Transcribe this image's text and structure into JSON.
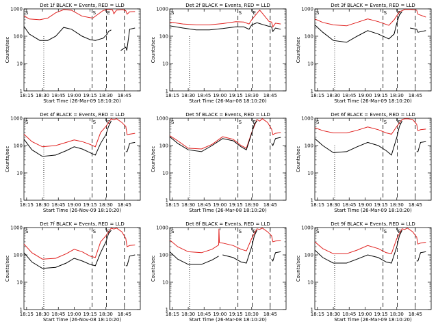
{
  "figure": {
    "ytick_labels": [
      "1000",
      "100",
      "10",
      "1"
    ],
    "xtick_labels": [
      "18:15",
      "18:30",
      "18:45",
      "19:00",
      "19:15",
      "18:30",
      "18:45"
    ],
    "marker_labels": {
      "start": "S",
      "end": "E",
      "loc_c": "C",
      "loc_n": "N"
    }
  },
  "chart_data": [
    {
      "type": "line",
      "title": "Det 1f BLACK = Events, RED = LLD",
      "xlabel": "Start Time (26-Mar-09 18:10:20)",
      "ylabel": "Counts/sec",
      "yscale": "log",
      "xlim": [
        0,
        44
      ],
      "ylim": [
        1,
        1000
      ],
      "series": [
        {
          "name": "LLD",
          "color": "#e0201e",
          "x": [
            0,
            2,
            6,
            9,
            12,
            15,
            18,
            22,
            26,
            30,
            32,
            33.5,
            34,
            35,
            37.5,
            38.5,
            39,
            40,
            42
          ],
          "values": [
            560,
            430,
            400,
            460,
            720,
            940,
            890,
            540,
            460,
            880,
            960,
            920,
            660,
            900,
            920,
            860,
            640,
            780,
            800
          ]
        },
        {
          "name": "Events",
          "color": "#000000",
          "x": [
            0,
            2,
            6,
            9,
            12,
            15,
            18,
            22,
            25,
            27,
            30,
            31.5,
            32,
            33,
            36,
            36.6,
            38.5,
            38.9,
            40,
            42
          ],
          "values": [
            230,
            120,
            70,
            70,
            100,
            210,
            180,
            100,
            75,
            70,
            85,
            120,
            150,
            170,
            null,
            30,
            40,
            30,
            180,
            200
          ]
        }
      ]
    },
    {
      "type": "line",
      "title": "Det 2f BLACK = Events, RED = LLD",
      "xlabel": "Start Time (26-Mar-08 18:10:20)",
      "ylabel": "Counts/sec",
      "yscale": "log",
      "xlim": [
        0,
        44
      ],
      "ylim": [
        1,
        1000
      ],
      "series": [
        {
          "name": "LLD",
          "color": "#e0201e",
          "x": [
            0,
            5,
            10,
            15,
            20,
            25,
            28,
            30,
            31,
            34,
            35,
            37.5,
            38.5,
            39,
            40,
            42
          ],
          "values": [
            330,
            280,
            260,
            260,
            290,
            340,
            330,
            280,
            400,
            900,
            700,
            350,
            330,
            220,
            300,
            280
          ]
        },
        {
          "name": "Events",
          "color": "#000000",
          "x": [
            0,
            5,
            10,
            15,
            20,
            25,
            28,
            30,
            31,
            33,
            35,
            37.5,
            38.5,
            39,
            40,
            42
          ],
          "values": [
            240,
            200,
            170,
            170,
            190,
            220,
            220,
            180,
            260,
            310,
            270,
            230,
            220,
            150,
            200,
            180
          ]
        }
      ]
    },
    {
      "type": "line",
      "title": "Det 3f BLACK = Events, RED = LLD",
      "xlabel": "Start Time (26-Mar-09 18:10:20)",
      "ylabel": "Counts/sec",
      "yscale": "log",
      "xlim": [
        0,
        44
      ],
      "ylim": [
        1,
        1000
      ],
      "series": [
        {
          "name": "LLD",
          "color": "#e0201e",
          "x": [
            0,
            3,
            7,
            12,
            16,
            20,
            24,
            28,
            30,
            32,
            34,
            36,
            38.5,
            39,
            42
          ],
          "values": [
            430,
            320,
            260,
            240,
            320,
            430,
            340,
            250,
            400,
            780,
            950,
            960,
            900,
            640,
            500
          ]
        },
        {
          "name": "Events",
          "color": "#000000",
          "x": [
            0,
            3,
            7,
            12,
            16,
            20,
            24,
            28,
            30,
            31,
            32,
            33,
            34,
            36,
            38.5,
            39,
            42
          ],
          "values": [
            260,
            140,
            70,
            60,
            100,
            160,
            120,
            80,
            120,
            300,
            600,
            800,
            null,
            200,
            180,
            140,
            160
          ]
        }
      ]
    },
    {
      "type": "line",
      "title": "Det 4f BLACK = Events, RED = LLD",
      "xlabel": "Start Time (26-Nov-09 18:10:20)",
      "ylabel": "Counts/sec",
      "yscale": "log",
      "xlim": [
        0,
        44
      ],
      "ylim": [
        1,
        1000
      ],
      "series": [
        {
          "name": "LLD",
          "color": "#e0201e",
          "x": [
            0,
            3,
            7,
            12,
            16,
            19,
            22,
            25,
            27,
            29,
            31,
            33,
            34,
            35,
            37,
            38.5,
            39,
            40,
            42
          ],
          "values": [
            260,
            140,
            90,
            100,
            130,
            160,
            140,
            110,
            90,
            300,
            500,
            950,
            880,
            960,
            700,
            500,
            250,
            260,
            280
          ]
        },
        {
          "name": "Events",
          "color": "#000000",
          "x": [
            0,
            3,
            7,
            12,
            16,
            19,
            22,
            25,
            27,
            29,
            31,
            32,
            33,
            35,
            37,
            38.5,
            39,
            40,
            42
          ],
          "values": [
            170,
            70,
            40,
            45,
            65,
            90,
            75,
            55,
            45,
            120,
            250,
            500,
            800,
            null,
            null,
            60,
            60,
            120,
            130
          ]
        }
      ]
    },
    {
      "type": "line",
      "title": "Det 5f BLACK = Events, RED = LLD",
      "xlabel": "Start Time (26-Mar-08 18:10:20)",
      "ylabel": "Counts/sec",
      "yscale": "log",
      "xlim": [
        0,
        44
      ],
      "ylim": [
        1,
        1000
      ],
      "series": [
        {
          "name": "LLD",
          "color": "#e0201e",
          "x": [
            0,
            3,
            7,
            12,
            16,
            20,
            24,
            27,
            29,
            31,
            33,
            34,
            35,
            37,
            38.5,
            39,
            40,
            42
          ],
          "values": [
            230,
            150,
            80,
            75,
            110,
            210,
            170,
            100,
            80,
            300,
            900,
            780,
            960,
            700,
            400,
            250,
            280,
            300
          ]
        },
        {
          "name": "Events",
          "color": "#000000",
          "x": [
            0,
            3,
            7,
            12,
            16,
            20,
            24,
            27,
            29,
            31,
            32,
            33,
            35,
            37,
            38.5,
            39,
            40,
            42
          ],
          "values": [
            210,
            120,
            70,
            60,
            100,
            180,
            150,
            90,
            70,
            280,
            600,
            800,
            null,
            null,
            120,
            100,
            180,
            200
          ]
        }
      ]
    },
    {
      "type": "line",
      "title": "Det 6f BLACK = Events, RED = LLD",
      "xlabel": "Start Time (26-Mar-09 18:10:20)",
      "ylabel": "Counts/sec",
      "yscale": "log",
      "xlim": [
        0,
        44
      ],
      "ylim": [
        1,
        1000
      ],
      "series": [
        {
          "name": "LLD",
          "color": "#e0201e",
          "x": [
            0,
            3,
            7,
            12,
            16,
            20,
            24,
            27,
            29,
            31,
            33,
            34,
            35,
            37,
            38.5,
            39,
            40,
            42
          ],
          "values": [
            450,
            350,
            290,
            290,
            360,
            480,
            380,
            290,
            260,
            500,
            900,
            950,
            960,
            900,
            600,
            350,
            380,
            400
          ]
        },
        {
          "name": "Events",
          "color": "#000000",
          "x": [
            0,
            3,
            7,
            12,
            16,
            20,
            24,
            27,
            29,
            31,
            32,
            33,
            35,
            37,
            38.5,
            39,
            40,
            42
          ],
          "values": [
            180,
            100,
            55,
            60,
            90,
            130,
            100,
            65,
            45,
            200,
            500,
            800,
            null,
            null,
            60,
            60,
            130,
            140
          ]
        }
      ]
    },
    {
      "type": "line",
      "title": "Det 7f BLACK = Events, RED = LLD",
      "xlabel": "Start Time (26-Nov-08 18:10:20)",
      "ylabel": "Counts/sec",
      "yscale": "log",
      "xlim": [
        0,
        44
      ],
      "ylim": [
        1,
        1000
      ],
      "series": [
        {
          "name": "LLD",
          "color": "#e0201e",
          "x": [
            0,
            3,
            7,
            12,
            16,
            19,
            22,
            25,
            27,
            29,
            31,
            33,
            34,
            35,
            37,
            38.5,
            39,
            40,
            42
          ],
          "values": [
            250,
            120,
            70,
            75,
            110,
            160,
            130,
            90,
            80,
            300,
            500,
            950,
            880,
            960,
            700,
            400,
            200,
            220,
            230
          ]
        },
        {
          "name": "Events",
          "color": "#000000",
          "x": [
            0,
            3,
            7,
            12,
            16,
            19,
            22,
            25,
            27,
            29,
            31,
            32,
            33,
            35,
            37,
            38.5,
            39,
            40,
            42
          ],
          "values": [
            120,
            55,
            32,
            35,
            50,
            75,
            60,
            45,
            40,
            120,
            300,
            600,
            800,
            null,
            null,
            40,
            40,
            90,
            100
          ]
        }
      ]
    },
    {
      "type": "line",
      "title": "Det 8f BLACK = Events, RED = LLD",
      "xlabel": "Start Time (26-Mar-08 18:10:20)",
      "ylabel": "Counts/sec",
      "yscale": "log",
      "xlim": [
        0,
        44
      ],
      "ylim": [
        1,
        1000
      ],
      "series": [
        {
          "name": "LLD",
          "color": "#e0201e",
          "x": [
            0,
            3,
            7,
            12,
            16,
            18.5,
            18.6,
            18.8,
            20,
            24,
            27,
            29,
            31,
            33,
            34,
            35,
            37,
            38.5,
            39,
            40,
            42
          ],
          "values": [
            350,
            200,
            130,
            120,
            160,
            230,
            900,
            280,
            270,
            220,
            160,
            140,
            400,
            900,
            850,
            960,
            700,
            500,
            300,
            320,
            340
          ]
        },
        {
          "name": "Events",
          "color": "#000000",
          "x": [
            0,
            3,
            7,
            12,
            16,
            18.5,
            19.5,
            20,
            24,
            27,
            29,
            31,
            32,
            33,
            35,
            37,
            38.5,
            39,
            40,
            42
          ],
          "values": [
            130,
            70,
            45,
            45,
            65,
            90,
            null,
            100,
            80,
            55,
            50,
            200,
            500,
            800,
            null,
            null,
            70,
            60,
            120,
            130
          ]
        }
      ]
    },
    {
      "type": "line",
      "title": "Det 9f BLACK = Events, RED = LLD",
      "xlabel": "Start Time (26-Mar-09 18:10:20)",
      "ylabel": "Counts/sec",
      "yscale": "log",
      "xlim": [
        0,
        44
      ],
      "ylim": [
        1,
        1000
      ],
      "series": [
        {
          "name": "LLD",
          "color": "#e0201e",
          "x": [
            0,
            3,
            7,
            12,
            16,
            20,
            24,
            27,
            29,
            31,
            33,
            34,
            35,
            37,
            38.5,
            39,
            40,
            42
          ],
          "values": [
            300,
            170,
            110,
            110,
            150,
            220,
            170,
            120,
            110,
            400,
            900,
            850,
            960,
            700,
            450,
            250,
            270,
            290
          ]
        },
        {
          "name": "Events",
          "color": "#000000",
          "x": [
            0,
            3,
            7,
            12,
            16,
            20,
            24,
            27,
            29,
            31,
            32,
            33,
            35,
            37,
            38.5,
            39,
            40,
            42
          ],
          "values": [
            150,
            80,
            50,
            50,
            70,
            100,
            80,
            55,
            50,
            200,
            500,
            800,
            null,
            null,
            60,
            60,
            120,
            130
          ]
        }
      ]
    }
  ]
}
